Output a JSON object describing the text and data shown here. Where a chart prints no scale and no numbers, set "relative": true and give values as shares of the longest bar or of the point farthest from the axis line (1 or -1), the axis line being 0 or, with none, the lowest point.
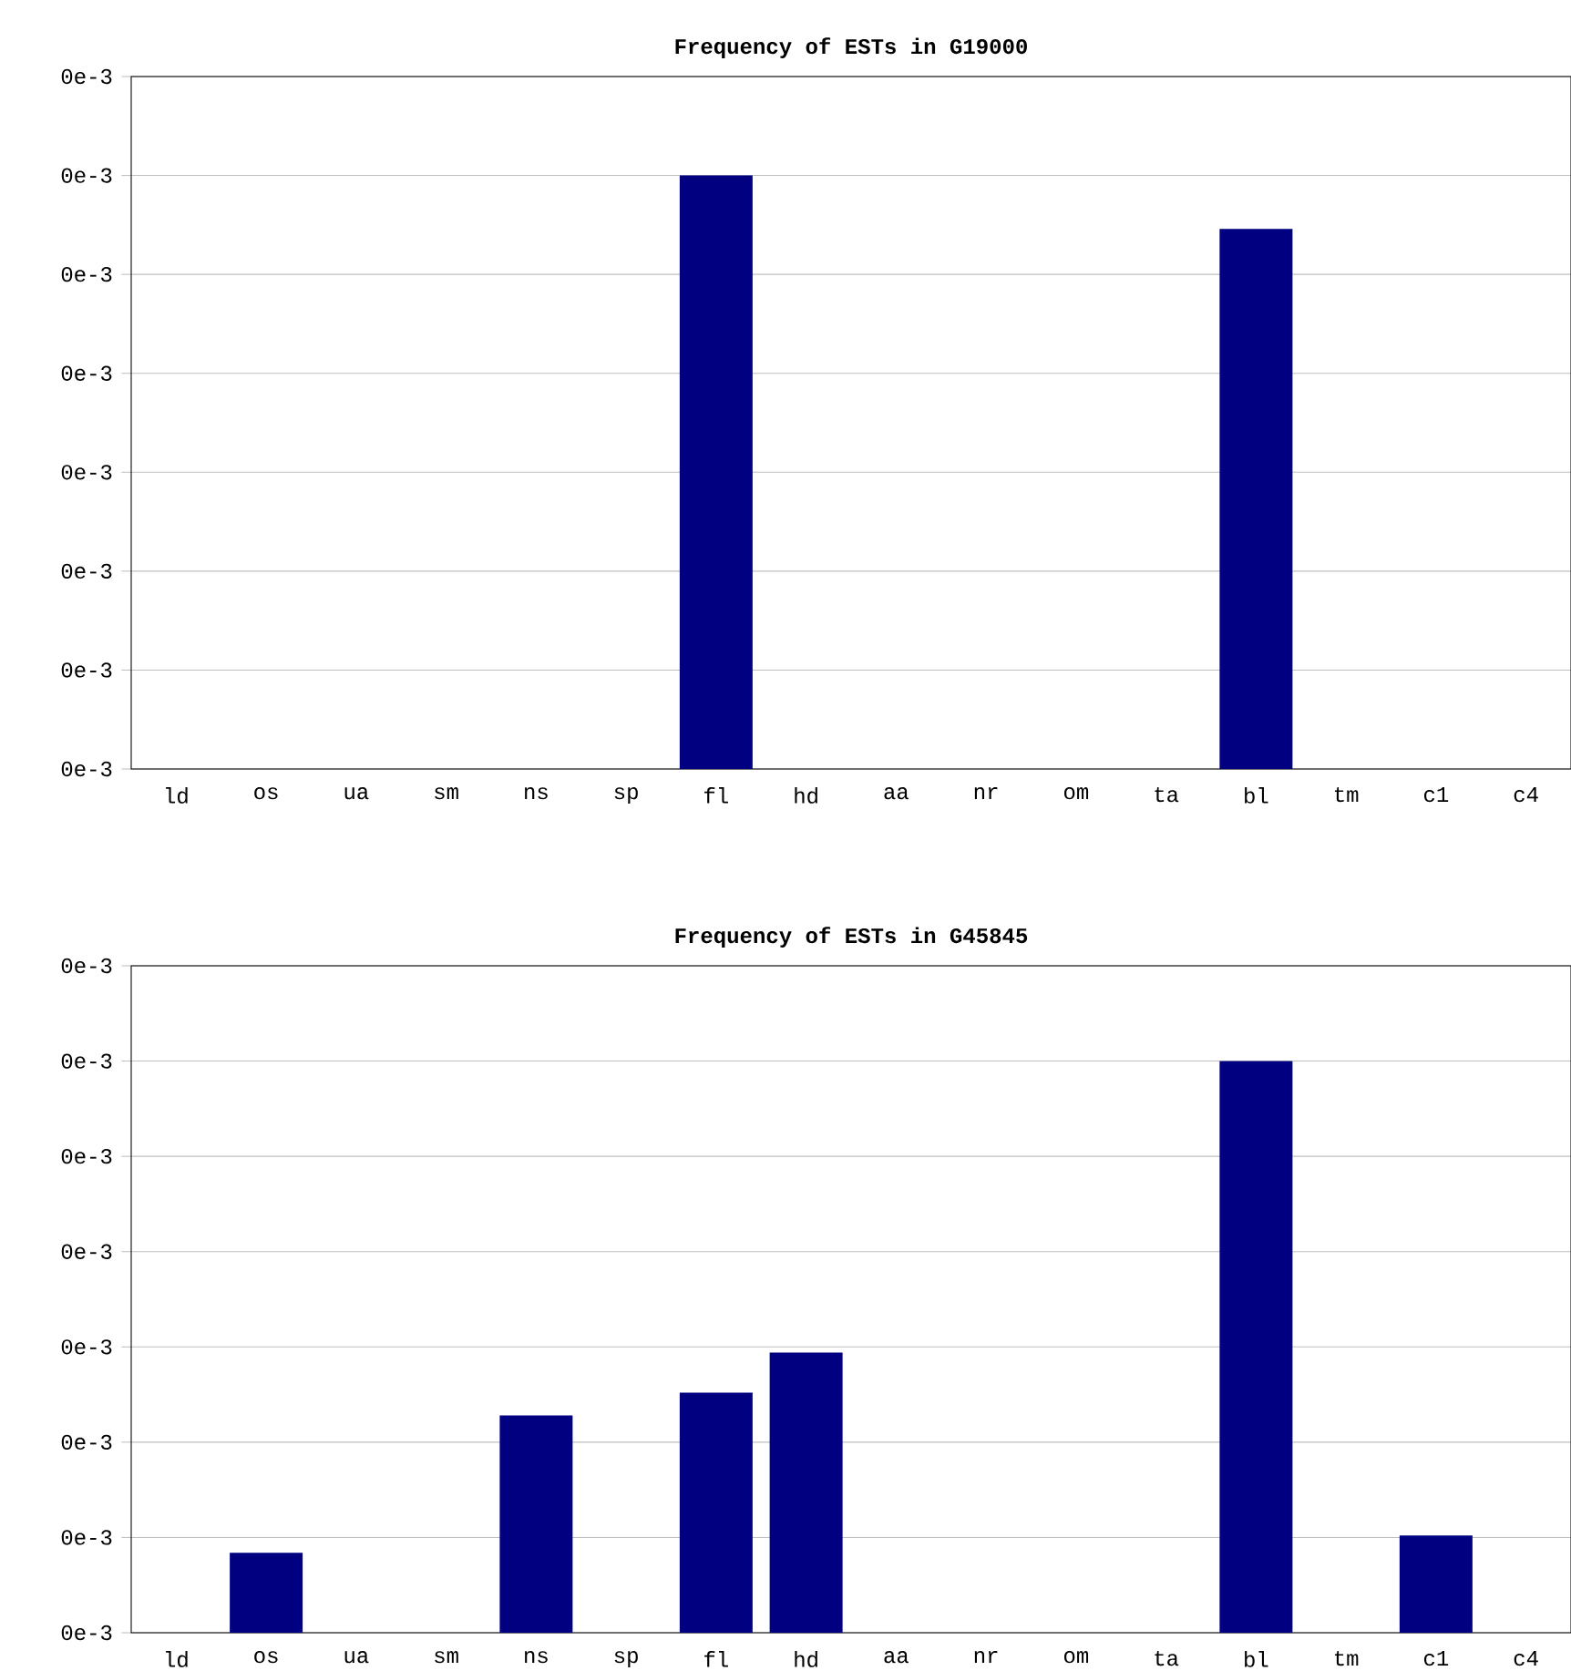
{
  "chart_data": [
    {
      "type": "bar",
      "title": "Frequency of ESTs in G19000",
      "relative": true,
      "color": "#000080",
      "grid": "y",
      "categories": [
        "ld",
        "os",
        "ua",
        "sm",
        "ns",
        "sp",
        "fl",
        "hd",
        "aa",
        "nr",
        "om",
        "ta",
        "bl",
        "tm",
        "c1",
        "c4"
      ],
      "values": [
        0,
        0,
        0,
        0,
        0,
        0,
        1,
        0,
        0,
        0,
        0,
        0,
        0.91,
        0,
        0,
        0
      ],
      "annotations": [
        "0e-3",
        "0e-3",
        "0e-3",
        "0e-3",
        "0e-3",
        "0e-3",
        "0e-3",
        "0e-3"
      ]
    },
    {
      "type": "bar",
      "title": "Frequency of ESTs in G45845",
      "relative": true,
      "color": "#000080",
      "grid": "y",
      "categories": [
        "ld",
        "os",
        "ua",
        "sm",
        "ns",
        "sp",
        "fl",
        "hd",
        "aa",
        "nr",
        "om",
        "ta",
        "bl",
        "tm",
        "c1",
        "c4"
      ],
      "values": [
        0,
        0.14,
        0,
        0,
        0.38,
        0,
        0.42,
        0.49,
        0,
        0,
        0,
        0,
        1,
        0,
        0.17,
        0
      ],
      "annotations": [
        "0e-3",
        "0e-3",
        "0e-3",
        "0e-3",
        "0e-3",
        "0e-3",
        "0e-3",
        "0e-3"
      ]
    }
  ]
}
